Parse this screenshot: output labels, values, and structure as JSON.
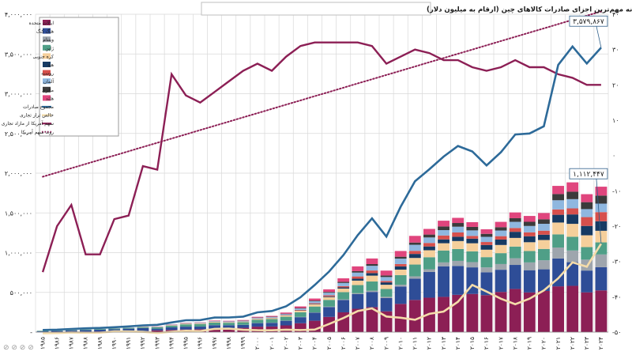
{
  "chart_data": {
    "type": "bar",
    "title": "نمودار- روند سالانه مهم‌ترین اجزای صادرات کالاهای چین (ارقام به میلیون دلار)",
    "x": [
      "1985",
      "1986",
      "1987",
      "1988",
      "1989",
      "1990",
      "1991",
      "1992",
      "1993",
      "1994",
      "1995",
      "1996",
      "1997",
      "1998",
      "1999",
      "2000",
      "2001",
      "2002",
      "2003",
      "2004",
      "2005",
      "2006",
      "2007",
      "2008",
      "2009",
      "2010",
      "2011",
      "2012",
      "2013",
      "2014",
      "2015",
      "2016",
      "2017",
      "2018",
      "2019",
      "2020",
      "2021",
      "2022",
      "2023",
      "2024"
    ],
    "x_tick_labels": [
      "۱۹۸۵",
      "۱۹۸۶",
      "۱۹۸۷",
      "۱۹۸۸",
      "۱۹۸۹",
      "۱۹۹۰",
      "۱۹۹۱",
      "۱۹۹۲",
      "۱۹۹۳",
      "۱۹۹۴",
      "۱۹۹۵",
      "۱۹۹۶",
      "۱۹۹۷",
      "۱۹۹۸",
      "۱۹۹۹",
      "۲۰۰۰",
      "۲۰۰۱",
      "۲۰۰۲",
      "۲۰۰۳",
      "۲۰۰۴",
      "۲۰۰۵",
      "۲۰۰۶",
      "۲۰۰۷",
      "۲۰۰۸",
      "۲۰۰۹",
      "۲۰۱۰",
      "۲۰۱۱",
      "۲۰۱۲",
      "۲۰۱۳",
      "۲۰۱۴",
      "۲۰۱۵",
      "۲۰۱۶",
      "۲۰۱۷",
      "۲۰۱۸",
      "۲۰۱۹",
      "۲۰۲۰",
      "۲۰۲۱",
      "۲۰۲۲",
      "۲۰۲۳",
      "۲۰۲۴"
    ],
    "ylim_left": [
      0,
      4000000
    ],
    "ylim_right": [
      -50,
      40
    ],
    "y_left_ticks": [
      0,
      500000,
      1000000,
      1500000,
      2000000,
      2500000,
      3000000,
      3500000,
      4000000
    ],
    "y_left_tick_labels": [
      "-",
      "۵۰۰,۰۰۰",
      "۱,۰۰۰,۰۰۰",
      "۱,۵۰۰,۰۰۰",
      "۲,۰۰۰,۰۰۰",
      "۲,۵۰۰,۰۰۰",
      "۳,۰۰۰,۰۰۰",
      "۳,۵۰۰,۰۰۰",
      "۴,۰۰۰,۰۰۰"
    ],
    "y_right_ticks": [
      -50,
      -40,
      -30,
      -20,
      -10,
      0,
      10,
      20,
      30,
      40
    ],
    "y_right_tick_labels": [
      "-۵۰",
      "-۴۰",
      "-۳۰",
      "-۲۰",
      "-۱۰",
      "۰",
      "۱۰",
      "۲۰",
      "۳۰",
      "۴۰"
    ],
    "grid": true,
    "legend_position": "top-left",
    "series": [
      {
        "name": "ایالات متحده",
        "color": "#8c1f55",
        "values": [
          2300,
          4700,
          6300,
          6800,
          8400,
          9200,
          11300,
          13900,
          21600,
          27500,
          32800,
          36500,
          43400,
          48400,
          54200,
          68700,
          70600,
          84500,
          111400,
          143200,
          191300,
          249000,
          293400,
          314800,
          261800,
          355200,
          404900,
          433100,
          443600,
          469300,
          480300,
          465400,
          505600,
          543400,
          499500,
          517500,
          576100,
          582400,
          500300,
          525000
        ]
      },
      {
        "name": "هنگ کنگ",
        "color": "#2e4d97",
        "values": [
          7200,
          9600,
          15000,
          19000,
          22000,
          26600,
          32000,
          37500,
          22000,
          32400,
          36000,
          32900,
          43800,
          38700,
          36900,
          44500,
          46500,
          58500,
          76300,
          100900,
          124500,
          155400,
          184400,
          190700,
          166200,
          218300,
          268000,
          323500,
          384800,
          363200,
          334500,
          287700,
          279200,
          302100,
          279600,
          272700,
          350200,
          297500,
          274300,
          292000
        ]
      },
      {
        "name": "ویتنام",
        "color": "#9ea5ad",
        "values": [
          0,
          0,
          0,
          0,
          0,
          0,
          0,
          100,
          400,
          500,
          700,
          800,
          1100,
          1000,
          1000,
          1500,
          1800,
          2100,
          3200,
          4300,
          5600,
          7500,
          11900,
          15100,
          16300,
          23100,
          29100,
          34200,
          48600,
          63700,
          66100,
          61100,
          71600,
          83900,
          97900,
          113800,
          137900,
          147000,
          137600,
          160000
        ]
      },
      {
        "name": "ژاپن",
        "color": "#4f9f87",
        "values": [
          6100,
          4700,
          6400,
          7800,
          8400,
          9000,
          10200,
          11700,
          15800,
          21600,
          28500,
          30900,
          31800,
          29700,
          32400,
          41700,
          45100,
          48400,
          59400,
          73500,
          84000,
          91600,
          102100,
          116100,
          97900,
          121000,
          148300,
          151600,
          150100,
          149400,
          135600,
          129200,
          137300,
          147100,
          143200,
          142600,
          165800,
          172900,
          157300,
          152000
        ]
      },
      {
        "name": "کره جنوبی",
        "color": "#f5cf9b",
        "values": [
          0,
          0,
          0,
          0,
          0,
          0,
          0,
          2400,
          2900,
          4400,
          6700,
          7500,
          9100,
          6300,
          7800,
          11300,
          12500,
          15500,
          20100,
          27800,
          35100,
          44500,
          56100,
          73900,
          53700,
          68800,
          82900,
          87700,
          91200,
          100300,
          101400,
          93700,
          102800,
          108800,
          111000,
          112500,
          148900,
          162600,
          149000,
          146000
        ]
      },
      {
        "name": "هند",
        "color": "#163a63",
        "values": [
          100,
          100,
          100,
          100,
          200,
          200,
          100,
          200,
          300,
          600,
          800,
          700,
          900,
          1000,
          1200,
          1600,
          1900,
          2700,
          3300,
          5900,
          8900,
          14600,
          24000,
          31600,
          29700,
          40900,
          50500,
          47700,
          48400,
          54200,
          58200,
          59400,
          68000,
          76900,
          74900,
          66700,
          97500,
          118500,
          117700,
          120000
        ]
      },
      {
        "name": "روسیه",
        "color": "#d6504c",
        "values": [
          0,
          0,
          0,
          0,
          0,
          0,
          0,
          2300,
          2700,
          1600,
          1700,
          1700,
          2000,
          1800,
          1500,
          2200,
          2700,
          3500,
          6000,
          9100,
          13200,
          15800,
          28500,
          33000,
          17500,
          29600,
          38900,
          44100,
          49600,
          53700,
          34800,
          37300,
          43000,
          48000,
          49700,
          50600,
          67600,
          76100,
          111000,
          115000
        ]
      },
      {
        "name": "آلمان",
        "color": "#8fb7df",
        "values": [
          700,
          1100,
          1200,
          1500,
          1800,
          2000,
          2400,
          2400,
          3900,
          4800,
          5700,
          5800,
          6500,
          7400,
          7800,
          9300,
          9800,
          11400,
          17400,
          23800,
          32500,
          40300,
          48700,
          59200,
          49900,
          68000,
          76400,
          69200,
          67300,
          72700,
          69100,
          65200,
          71100,
          77600,
          79800,
          86800,
          115200,
          116200,
          100700,
          107000
        ]
      },
      {
        "name": "مالزی",
        "color": "#3b3b3b",
        "values": [
          200,
          200,
          200,
          200,
          200,
          300,
          300,
          400,
          600,
          800,
          1300,
          1400,
          1900,
          1600,
          1700,
          2600,
          3200,
          5000,
          6100,
          8100,
          10600,
          13500,
          17700,
          21400,
          19600,
          23800,
          27900,
          36500,
          45900,
          46400,
          44000,
          37600,
          41700,
          45400,
          52400,
          56400,
          78400,
          93700,
          87400,
          101000
        ]
      },
      {
        "name": "هلند",
        "color": "#e0457d",
        "values": [
          200,
          300,
          400,
          400,
          600,
          800,
          1000,
          1100,
          1500,
          2800,
          3200,
          4100,
          5700,
          6500,
          7700,
          9200,
          10000,
          14500,
          20000,
          25900,
          32500,
          45000,
          60300,
          70800,
          61400,
          72000,
          84000,
          71000,
          72500,
          65000,
          59500,
          57500,
          67100,
          72700,
          73900,
          79000,
          102500,
          117600,
          100400,
          112000
        ]
      },
      {
        "name": "مجموع صادرات",
        "color": "#2d6a99",
        "values": [
          27350,
          30942,
          39437,
          47516,
          52538,
          62091,
          71843,
          84940,
          91744,
          121006,
          148780,
          151048,
          182792,
          183712,
          194931,
          249203,
          266098,
          325596,
          438228,
          593326,
          761953,
          968978,
          1220060,
          1430693,
          1201612,
          1577754,
          1898381,
          2048714,
          2209004,
          2342293,
          2273468,
          2097637,
          2263371,
          2486695,
          2499457,
          2589952,
          3362302,
          3593601,
          3380024,
          3579867
        ]
      },
      {
        "name": "خالص تراز تجاری",
        "color": "#f4dcaa",
        "values": [
          -14900,
          -12000,
          -3800,
          -7800,
          -6600,
          8700,
          8100,
          4400,
          -12200,
          5300,
          16700,
          12200,
          40400,
          43500,
          29200,
          24100,
          22500,
          30400,
          25500,
          32100,
          102000,
          177500,
          264300,
          298100,
          196000,
          181500,
          154900,
          230300,
          259000,
          382500,
          593900,
          510700,
          419600,
          350900,
          421100,
          523900,
          676400,
          877600,
          823200,
          1112447
        ]
      },
      {
        "name": "سهم آمریکا از مازاد تجاری چین",
        "color": "#8c1f55",
        "values": [
          -33,
          -20,
          -14,
          -28,
          -28,
          -18,
          -17,
          -3,
          -4,
          23,
          17,
          15,
          18,
          21,
          24,
          26,
          24,
          28,
          31,
          32,
          32,
          32,
          32,
          31,
          26,
          28,
          30,
          29,
          27,
          27,
          25,
          24,
          25,
          27,
          25,
          25,
          23,
          22,
          20,
          20
        ]
      },
      {
        "name": "روند سهم آمریکا",
        "color": "#8c1f55",
        "dotted": true,
        "values": [
          -6,
          -4.8,
          -3.6,
          -2.4,
          -1.2,
          0,
          1.2,
          2.4,
          3.6,
          4.8,
          6,
          7.2,
          8.4,
          9.6,
          10.8,
          12,
          13.2,
          14.4,
          15.6,
          16.8,
          18,
          19.2,
          20.4,
          21.6,
          22.8,
          24,
          25.2,
          26.4,
          27.6,
          28.8,
          30,
          31.2,
          32.4,
          33.6,
          34.8,
          36,
          37.2,
          38.4,
          39.6,
          40.8
        ]
      }
    ],
    "annotations": [
      {
        "text": "۳,۵۷۹,۸۶۷",
        "series": "مجموع صادرات",
        "x": "2024"
      },
      {
        "text": "۱,۱۱۲,۴۴۷",
        "series": "خالص تراز تجاری",
        "x": "2024"
      }
    ],
    "corner_marks": "⊘ ⊘ ⊘ ⊘"
  }
}
